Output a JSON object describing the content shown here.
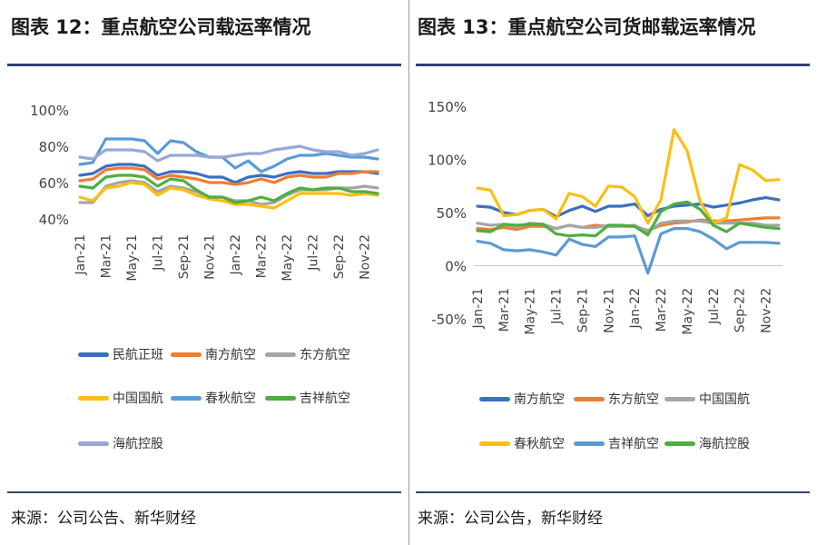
{
  "left": {
    "title": "图表 12：重点航空公司载运率情况",
    "source": "来源：公司公告、新华财经"
  },
  "right": {
    "title": "图表 13：重点航空公司货邮载运率情况",
    "source": "来源：公司公告，新华财经"
  },
  "chart_data": [
    {
      "type": "line",
      "title": "重点航空公司载运率情况",
      "ylim": [
        40,
        100
      ],
      "yticks": [
        "40%",
        "60%",
        "80%",
        "100%"
      ],
      "ytick_values": [
        40,
        60,
        80,
        100
      ],
      "x": [
        "Jan-21",
        "Feb-21",
        "Mar-21",
        "Apr-21",
        "May-21",
        "Jun-21",
        "Jul-21",
        "Aug-21",
        "Sep-21",
        "Oct-21",
        "Nov-21",
        "Dec-21",
        "Jan-22",
        "Feb-22",
        "Mar-22",
        "Apr-22",
        "May-22",
        "Jun-22",
        "Jul-22",
        "Aug-22",
        "Sep-22",
        "Oct-22",
        "Nov-22",
        "Dec-22"
      ],
      "xtick_labels": [
        "Jan-21",
        "Mar-21",
        "May-21",
        "Jul-21",
        "Sep-21",
        "Nov-21",
        "Jan-22",
        "Mar-22",
        "May-22",
        "Jul-22",
        "Sep-22",
        "Nov-22"
      ],
      "grid": false,
      "legend_position": "bottom",
      "series": [
        {
          "name": "民航正班",
          "color": "#3a6fc2",
          "values": [
            64,
            65,
            69,
            70,
            70,
            69,
            64,
            66,
            66,
            65,
            63,
            63,
            60,
            63,
            64,
            63,
            65,
            66,
            65,
            65,
            66,
            66,
            66,
            65
          ]
        },
        {
          "name": "南方航空",
          "color": "#ee7d31",
          "values": [
            61,
            62,
            67,
            68,
            68,
            67,
            62,
            64,
            63,
            62,
            60,
            60,
            59,
            60,
            62,
            60,
            63,
            64,
            63,
            63,
            65,
            65,
            66,
            66
          ]
        },
        {
          "name": "东方航空",
          "color": "#a5a5a5",
          "values": [
            49,
            49,
            58,
            60,
            61,
            60,
            55,
            58,
            57,
            55,
            52,
            52,
            50,
            50,
            48,
            49,
            53,
            56,
            56,
            56,
            57,
            57,
            58,
            57
          ]
        },
        {
          "name": "中国国航",
          "color": "#fbbf12",
          "values": [
            52,
            50,
            57,
            58,
            60,
            59,
            53,
            57,
            56,
            53,
            51,
            50,
            48,
            48,
            47,
            46,
            50,
            54,
            54,
            54,
            54,
            53,
            54,
            53
          ]
        },
        {
          "name": "春秋航空",
          "color": "#5b9bd5",
          "values": [
            70,
            71,
            84,
            84,
            84,
            83,
            76,
            83,
            82,
            77,
            74,
            74,
            68,
            72,
            66,
            69,
            73,
            75,
            75,
            76,
            75,
            74,
            74,
            73
          ]
        },
        {
          "name": "吉祥航空",
          "color": "#4daf3f",
          "values": [
            58,
            57,
            63,
            64,
            64,
            63,
            58,
            62,
            61,
            56,
            52,
            52,
            49,
            50,
            52,
            50,
            54,
            57,
            56,
            57,
            57,
            55,
            55,
            54
          ]
        },
        {
          "name": "海航控股",
          "color": "#96a8d8",
          "values": [
            74,
            73,
            78,
            78,
            78,
            77,
            72,
            75,
            75,
            75,
            74,
            74,
            75,
            76,
            76,
            78,
            79,
            80,
            78,
            77,
            77,
            75,
            76,
            78
          ]
        }
      ]
    },
    {
      "type": "line",
      "title": "重点航空公司货邮载运率情况",
      "ylim": [
        -50,
        150
      ],
      "yticks": [
        "-50%",
        "0%",
        "50%",
        "100%",
        "150%"
      ],
      "ytick_values": [
        -50,
        0,
        50,
        100,
        150
      ],
      "x": [
        "Jan-21",
        "Feb-21",
        "Mar-21",
        "Apr-21",
        "May-21",
        "Jun-21",
        "Jul-21",
        "Aug-21",
        "Sep-21",
        "Oct-21",
        "Nov-21",
        "Dec-21",
        "Jan-22",
        "Feb-22",
        "Mar-22",
        "Apr-22",
        "May-22",
        "Jun-22",
        "Jul-22",
        "Aug-22",
        "Sep-22",
        "Oct-22",
        "Nov-22",
        "Dec-22"
      ],
      "xtick_labels": [
        "Jan-21",
        "Mar-21",
        "May-21",
        "Jul-21",
        "Sep-21",
        "Nov-21",
        "Jan-22",
        "Mar-22",
        "May-22",
        "Jul-22",
        "Sep-22",
        "Nov-22"
      ],
      "grid": false,
      "legend_position": "bottom",
      "series": [
        {
          "name": "南方航空",
          "color": "#3a6fc2",
          "values": [
            56,
            55,
            50,
            48,
            52,
            53,
            46,
            52,
            56,
            51,
            56,
            56,
            58,
            47,
            53,
            56,
            57,
            58,
            55,
            57,
            59,
            62,
            64,
            62
          ]
        },
        {
          "name": "东方航空",
          "color": "#ee7d31",
          "values": [
            35,
            34,
            36,
            34,
            37,
            37,
            35,
            38,
            36,
            38,
            37,
            37,
            37,
            33,
            38,
            40,
            41,
            43,
            42,
            42,
            43,
            44,
            45,
            45
          ]
        },
        {
          "name": "中国国航",
          "color": "#a5a5a5",
          "values": [
            40,
            38,
            39,
            36,
            40,
            39,
            35,
            38,
            36,
            36,
            38,
            37,
            38,
            32,
            40,
            42,
            42,
            42,
            40,
            40,
            40,
            40,
            38,
            38
          ]
        },
        {
          "name": "春秋航空",
          "color": "#fbbf12",
          "values": [
            73,
            71,
            47,
            48,
            52,
            53,
            44,
            68,
            65,
            56,
            75,
            74,
            65,
            40,
            62,
            128,
            108,
            60,
            40,
            45,
            95,
            90,
            80,
            81
          ]
        },
        {
          "name": "吉祥航空",
          "color": "#5b9bd5",
          "values": [
            23,
            21,
            15,
            14,
            15,
            13,
            10,
            25,
            20,
            18,
            27,
            27,
            28,
            -7,
            30,
            35,
            35,
            32,
            25,
            16,
            22,
            22,
            22,
            21
          ]
        },
        {
          "name": "海航控股",
          "color": "#4daf3f",
          "values": [
            33,
            32,
            39,
            38,
            39,
            39,
            30,
            28,
            29,
            28,
            38,
            38,
            37,
            29,
            51,
            58,
            60,
            53,
            38,
            32,
            40,
            38,
            36,
            35
          ]
        }
      ]
    }
  ]
}
